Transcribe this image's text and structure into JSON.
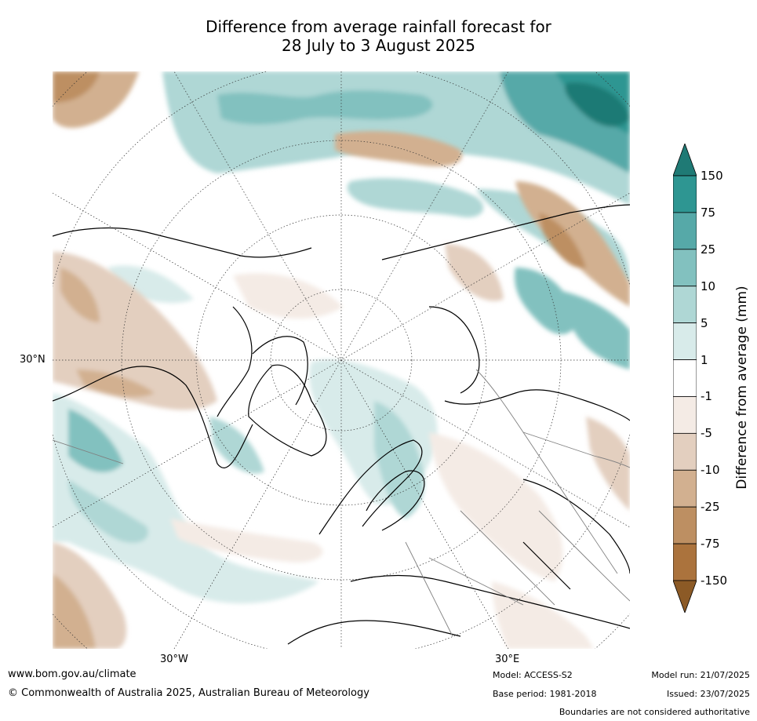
{
  "title_line1": "Difference from average rainfall forecast for",
  "title_line2": "28 July to 3 August 2025",
  "lat_labels": [
    "30°N"
  ],
  "lon_labels": [
    "30°W",
    "30°E"
  ],
  "colorbar": {
    "title": "Difference from average (mm)",
    "ticks": [
      "150",
      "75",
      "25",
      "10",
      "5",
      "1",
      "-1",
      "-5",
      "-10",
      "-25",
      "-75",
      "-150"
    ],
    "colors": [
      "#1f7a75",
      "#2e9692",
      "#56a9a8",
      "#82c1bf",
      "#afd7d5",
      "#d8ebea",
      "#ffffff",
      "#f4ebe5",
      "#e3cfbf",
      "#d2b090",
      "#bd8f62",
      "#ab733d",
      "#8c5a26"
    ]
  },
  "footer": {
    "website": "www.bom.gov.au/climate",
    "copyright": "© Commonwealth of Australia 2025, Australian Bureau of Meteorology",
    "model": "Model: ACCESS-S2",
    "base_period": "Base period: 1981-2018",
    "model_run": "Model run: 21/07/2025",
    "issued": "Issued: 23/07/2025",
    "disclaimer": "Boundaries are not considered authoritative"
  }
}
